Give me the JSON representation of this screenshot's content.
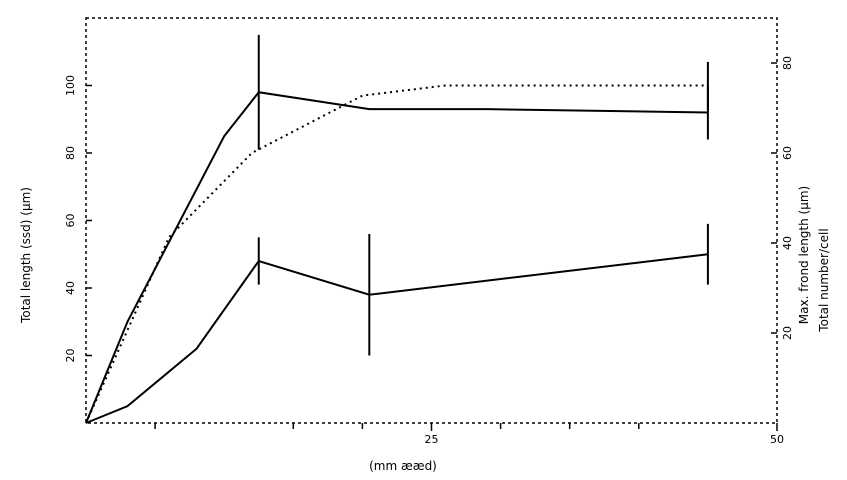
{
  "chart_data": {
    "type": "line",
    "xlabel": "(mm ææd)",
    "ylabel_left": "Total length (ssd) (µm)",
    "ylabel_right_1": "Max. frond length (µm)",
    "ylabel_right_2": "Total number/cell",
    "x_ticks": [
      "25",
      "50"
    ],
    "y_ticks_left": [
      "20",
      "40",
      "60",
      "80",
      "100"
    ],
    "y_ticks_right": [
      "20",
      "40",
      "60",
      "80"
    ],
    "series": [
      {
        "style": "dotted",
        "x": [
          0,
          6,
          12,
          20,
          26,
          45
        ],
        "y": [
          0,
          55,
          80,
          97,
          100,
          100
        ],
        "err": [
          0,
          0,
          0,
          0,
          0,
          7
        ]
      },
      {
        "style": "solid",
        "x": [
          0,
          3,
          10,
          12.5,
          20.5,
          29,
          45
        ],
        "y": [
          0,
          30,
          85,
          98,
          93,
          93,
          92
        ],
        "err": [
          0,
          0,
          0,
          17,
          0,
          0,
          8
        ]
      },
      {
        "style": "solid",
        "x": [
          0,
          3,
          8,
          12.5,
          20.5,
          45
        ],
        "y": [
          0,
          5,
          22,
          48,
          38,
          50
        ],
        "err": [
          0,
          0,
          0,
          7,
          18,
          9
        ]
      }
    ]
  }
}
